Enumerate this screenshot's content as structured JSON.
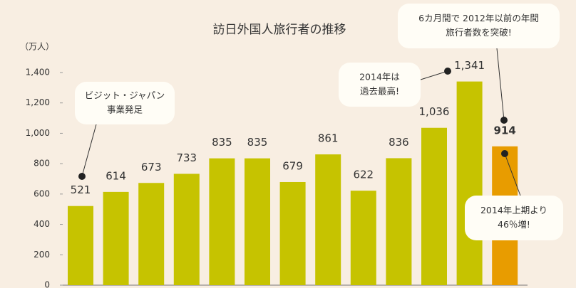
{
  "chart_data": {
    "type": "bar",
    "title": "訪日外国人旅行者の推移",
    "y_label": "（万人）",
    "categories": [
      null,
      null,
      null,
      null,
      null,
      null,
      null,
      null,
      null,
      null,
      null,
      null,
      null
    ],
    "values": [
      521,
      614,
      673,
      733,
      835,
      835,
      679,
      861,
      622,
      836,
      1036,
      1341,
      914
    ],
    "value_labels": [
      "521",
      "614",
      "673",
      "733",
      "835",
      "835",
      "679",
      "861",
      "622",
      "836",
      "1,036",
      "1,341",
      "914"
    ],
    "colors": [
      "#c6c300",
      "#c6c300",
      "#c6c300",
      "#c6c300",
      "#c6c300",
      "#c6c300",
      "#c6c300",
      "#c6c300",
      "#c6c300",
      "#c6c300",
      "#c6c300",
      "#c6c300",
      "#e89c00"
    ],
    "ylim": [
      0,
      1400
    ],
    "yticks": [
      0,
      200,
      400,
      600,
      800,
      {
        "value": 1000,
        "label": "1,000"
      },
      {
        "value": 1200,
        "label": "1,200"
      },
      {
        "value": 1400,
        "label": "1,400"
      }
    ],
    "grid": false,
    "annotations": [
      {
        "lines": [
          "ビジット・ジャパン",
          "事業発足"
        ]
      },
      {
        "lines": [
          "2014年は",
          "過去最高!"
        ]
      },
      {
        "lines": [
          "6カ月間で 2012年以前の年間",
          "旅行者数を突破!"
        ]
      },
      {
        "lines": [
          "2014年上期より",
          "46％増!"
        ]
      }
    ]
  }
}
